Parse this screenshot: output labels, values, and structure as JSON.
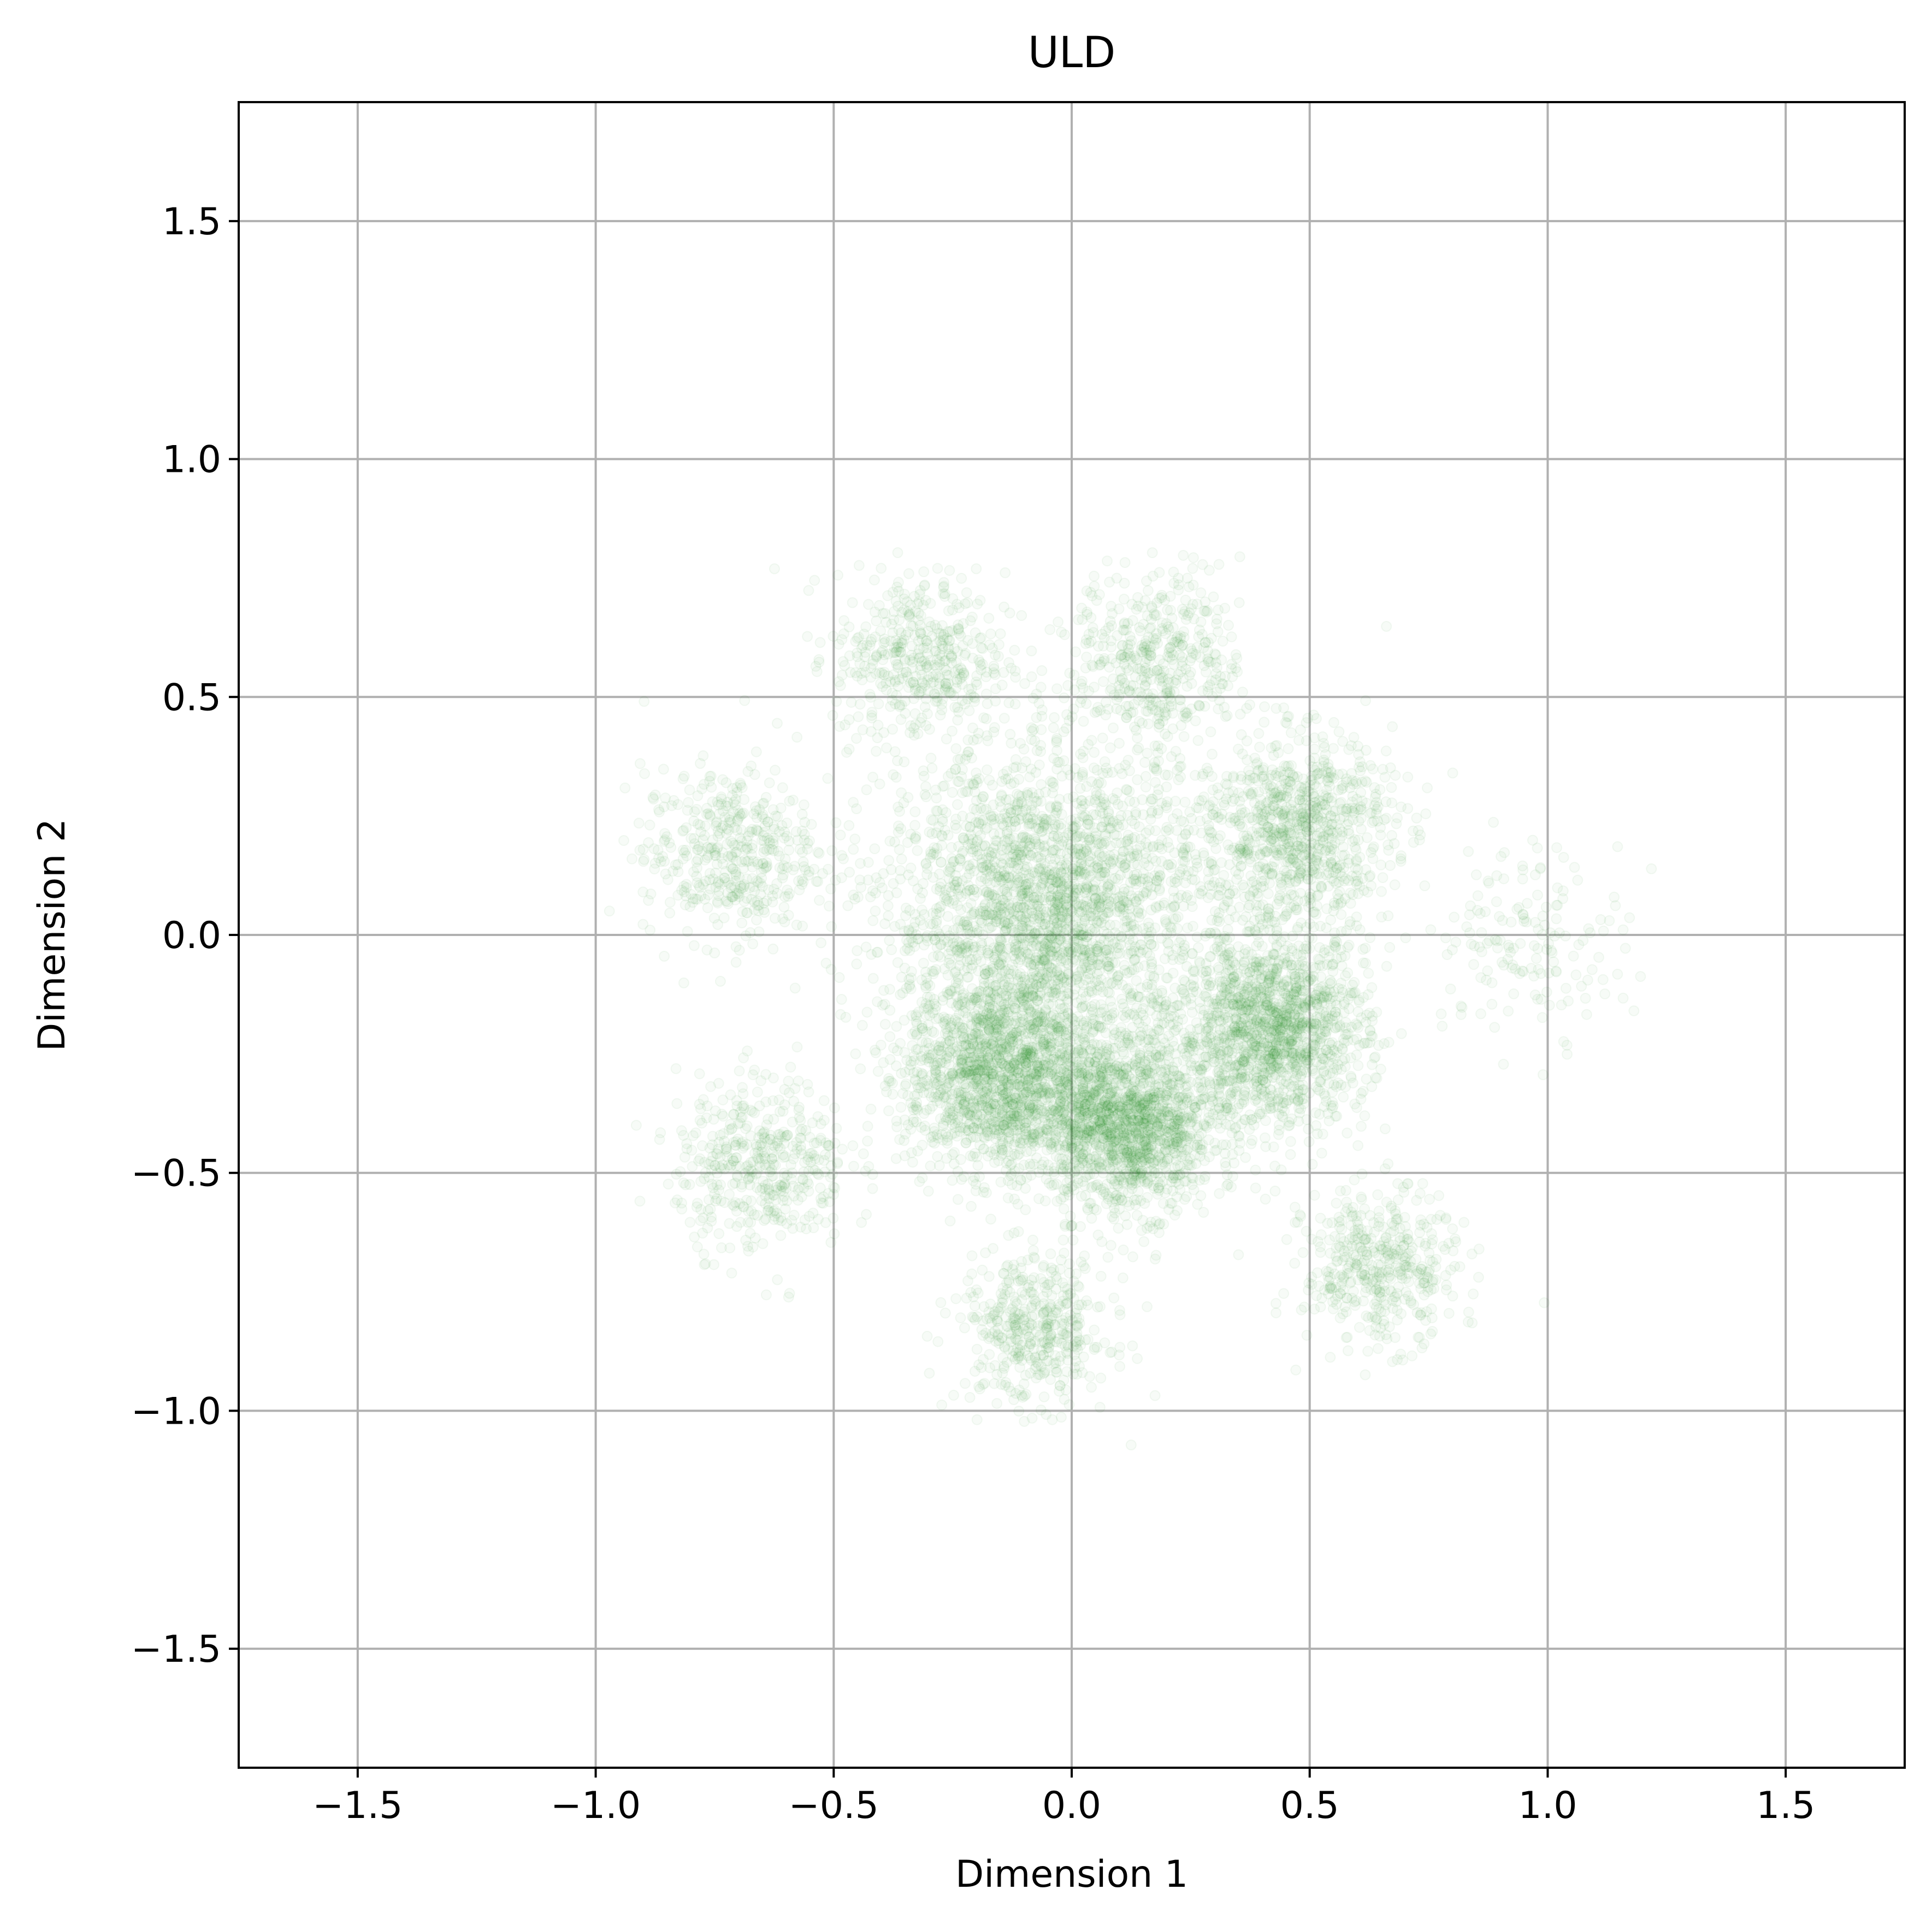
{
  "chart_data": {
    "type": "scatter",
    "title": "ULD",
    "xlabel": "Dimension 1",
    "ylabel": "Dimension 2",
    "xlim": [
      -1.75,
      1.75
    ],
    "ylim": [
      -1.75,
      1.75
    ],
    "xticks": [
      -1.5,
      -1.0,
      -0.5,
      0.0,
      0.5,
      1.0,
      1.5
    ],
    "yticks": [
      -1.5,
      -1.0,
      -0.5,
      0.0,
      0.5,
      1.0,
      1.5
    ],
    "xtick_labels": [
      "−1.5",
      "−1.0",
      "−0.5",
      "0.0",
      "0.5",
      "1.0",
      "1.5"
    ],
    "ytick_labels": [
      "−1.5",
      "−1.0",
      "−0.5",
      "0.0",
      "0.5",
      "1.0",
      "1.5"
    ],
    "grid": true,
    "legend": "none",
    "marker_color": "#008000",
    "marker_alpha": 0.03,
    "clusters": [
      {
        "center": [
          -0.05,
          0.05
        ],
        "spread": 0.17,
        "relative_density": "very high"
      },
      {
        "center": [
          -0.15,
          -0.3
        ],
        "spread": 0.1,
        "relative_density": "high"
      },
      {
        "center": [
          0.12,
          -0.4
        ],
        "spread": 0.09,
        "relative_density": "high"
      },
      {
        "center": [
          0.42,
          -0.2
        ],
        "spread": 0.1,
        "relative_density": "high"
      },
      {
        "center": [
          0.47,
          0.22
        ],
        "spread": 0.1,
        "relative_density": "medium"
      },
      {
        "center": [
          0.18,
          0.58
        ],
        "spread": 0.09,
        "relative_density": "low"
      },
      {
        "center": [
          -0.32,
          0.58
        ],
        "spread": 0.09,
        "relative_density": "low"
      },
      {
        "center": [
          -0.72,
          0.17
        ],
        "spread": 0.09,
        "relative_density": "low"
      },
      {
        "center": [
          -0.65,
          -0.48
        ],
        "spread": 0.09,
        "relative_density": "low"
      },
      {
        "center": [
          -0.08,
          -0.83
        ],
        "spread": 0.08,
        "relative_density": "low"
      },
      {
        "center": [
          0.65,
          -0.7
        ],
        "spread": 0.08,
        "relative_density": "low"
      },
      {
        "center": [
          0.97,
          0.0
        ],
        "spread": 0.1,
        "relative_density": "very low"
      }
    ]
  }
}
